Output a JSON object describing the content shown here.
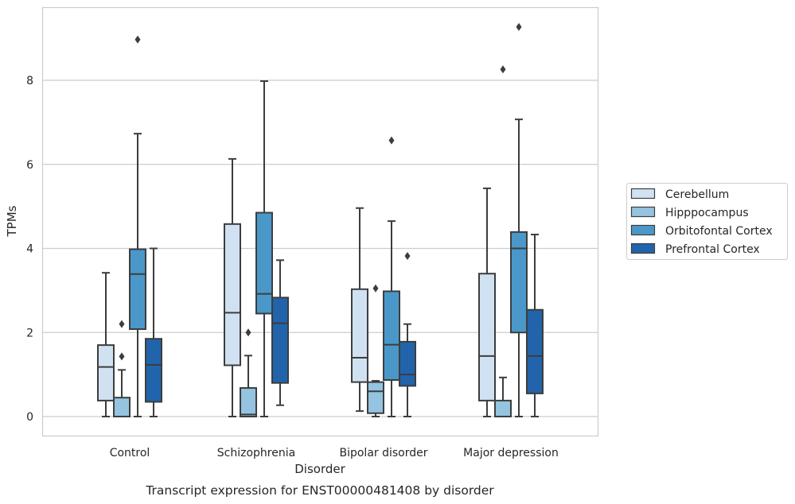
{
  "chart_data": {
    "type": "box",
    "title": "",
    "caption": "Transcript expression for ENST00000481408 by disorder",
    "xlabel": "Disorder",
    "ylabel": "TPMs",
    "ylim": [
      -0.45,
      9.7
    ],
    "yticks": [
      0,
      2,
      4,
      6,
      8
    ],
    "grid": "horizontal",
    "legend_position": "right",
    "categories": [
      "Control",
      "Schizophrenia",
      "Bipolar disorder",
      "Major depression"
    ],
    "series": [
      {
        "name": "Cerebellum",
        "color": "#d0e1f2",
        "boxes": [
          {
            "whislo": 0.0,
            "q1": 0.38,
            "med": 1.18,
            "q3": 1.7,
            "whishi": 3.42,
            "fliers": []
          },
          {
            "whislo": 0.0,
            "q1": 1.22,
            "med": 2.47,
            "q3": 4.58,
            "whishi": 6.13,
            "fliers": []
          },
          {
            "whislo": 0.13,
            "q1": 0.82,
            "med": 1.4,
            "q3": 3.03,
            "whishi": 4.96,
            "fliers": []
          },
          {
            "whislo": 0.0,
            "q1": 0.38,
            "med": 1.44,
            "q3": 3.4,
            "whishi": 5.43,
            "fliers": []
          }
        ]
      },
      {
        "name": "Hipppocampus",
        "color": "#94c4df",
        "boxes": [
          {
            "whislo": 0.0,
            "q1": 0.0,
            "med": 0.0,
            "q3": 0.45,
            "whishi": 1.11,
            "fliers": [
              1.43,
              2.2
            ]
          },
          {
            "whislo": 0.0,
            "q1": 0.0,
            "med": 0.05,
            "q3": 0.68,
            "whishi": 1.45,
            "fliers": [
              2.0
            ]
          },
          {
            "whislo": 0.0,
            "q1": 0.08,
            "med": 0.6,
            "q3": 0.82,
            "whishi": 0.85,
            "fliers": [
              3.05
            ]
          },
          {
            "whislo": 0.0,
            "q1": 0.0,
            "med": 0.0,
            "q3": 0.38,
            "whishi": 0.93,
            "fliers": [
              8.26
            ]
          }
        ]
      },
      {
        "name": "Orbitofontal Cortex",
        "color": "#4a98c9",
        "boxes": [
          {
            "whislo": 0.0,
            "q1": 2.08,
            "med": 3.39,
            "q3": 3.98,
            "whishi": 6.73,
            "fliers": [
              8.97
            ]
          },
          {
            "whislo": 0.0,
            "q1": 2.45,
            "med": 2.92,
            "q3": 4.85,
            "whishi": 7.98,
            "fliers": []
          },
          {
            "whislo": 0.0,
            "q1": 0.87,
            "med": 1.71,
            "q3": 2.98,
            "whishi": 4.65,
            "fliers": [
              6.57
            ]
          },
          {
            "whislo": 0.0,
            "q1": 2.0,
            "med": 4.0,
            "q3": 4.39,
            "whishi": 7.07,
            "fliers": [
              9.27
            ]
          }
        ]
      },
      {
        "name": "Prefrontal Cortex",
        "color": "#2164ab",
        "boxes": [
          {
            "whislo": 0.0,
            "q1": 0.35,
            "med": 1.23,
            "q3": 1.85,
            "whishi": 4.0,
            "fliers": []
          },
          {
            "whislo": 0.27,
            "q1": 0.8,
            "med": 2.22,
            "q3": 2.83,
            "whishi": 3.72,
            "fliers": []
          },
          {
            "whislo": 0.0,
            "q1": 0.73,
            "med": 1.0,
            "q3": 1.78,
            "whishi": 2.2,
            "fliers": [
              3.82
            ]
          },
          {
            "whislo": 0.0,
            "q1": 0.55,
            "med": 1.44,
            "q3": 2.54,
            "whishi": 4.33,
            "fliers": []
          }
        ]
      }
    ]
  }
}
